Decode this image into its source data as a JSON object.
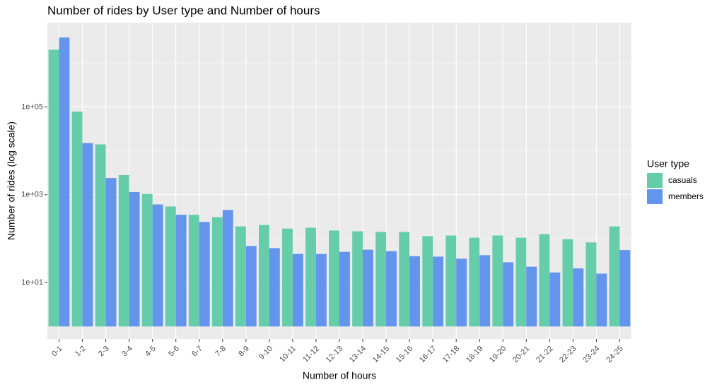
{
  "chart_data": {
    "type": "bar",
    "title": "Number of rides by User type and Number of hours",
    "x_label": "Number of hours",
    "y_label": "Number of rides (log scale)",
    "legend_title": "User type",
    "legend_position": "right",
    "log_y": true,
    "grid": true,
    "categories": [
      "0-1",
      "1-2",
      "2-3",
      "3-4",
      "4-5",
      "5-6",
      "6-7",
      "7-8",
      "8-9",
      "9-10",
      "10-11",
      "11-12",
      "12-13",
      "13-14",
      "14-15",
      "15-16",
      "16-17",
      "17-18",
      "18-19",
      "19-20",
      "20-21",
      "21-22",
      "22-23",
      "23-24",
      "24-25"
    ],
    "series": [
      {
        "name": "casuals",
        "color": "#66cdaa",
        "values": [
          2000000,
          78000,
          14000,
          2800,
          1040,
          540,
          350,
          310,
          190,
          205,
          170,
          177,
          153,
          147,
          142,
          142,
          114,
          118,
          105,
          118,
          105,
          127,
          98,
          82,
          190
        ]
      },
      {
        "name": "members",
        "color": "#6495ed",
        "values": [
          3800000,
          15000,
          2400,
          1150,
          600,
          350,
          240,
          450,
          68,
          61,
          45,
          45,
          50,
          56,
          52,
          40,
          39,
          35,
          42,
          29,
          23,
          17,
          21,
          16,
          55
        ]
      }
    ],
    "ylim": [
      0.52,
      8300000
    ],
    "yticks": [
      {
        "value": 10,
        "label": "1e+01"
      },
      {
        "value": 1000,
        "label": "1e+03"
      },
      {
        "value": 100000,
        "label": "1e+05"
      }
    ],
    "minor_yticks": [
      1,
      100,
      10000,
      1000000
    ]
  }
}
